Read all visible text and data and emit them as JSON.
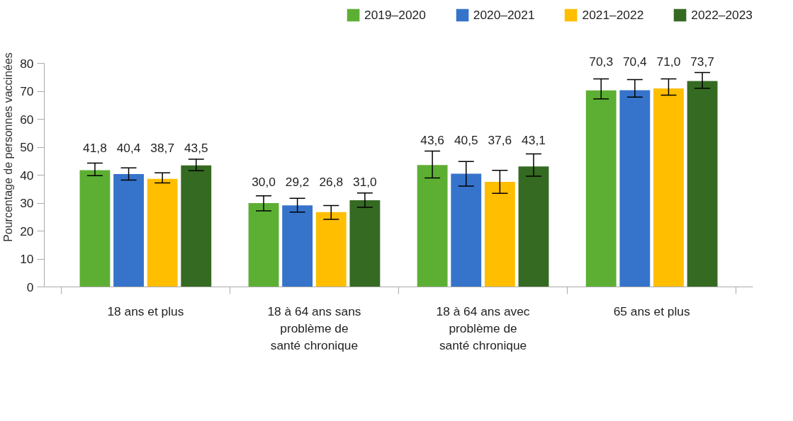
{
  "chart_data": {
    "type": "bar",
    "ylabel": "Pourcentage de personnes vaccinées",
    "categories": [
      "18 ans et plus",
      "18 à 64 ans sans problème de santé chronique",
      "18 à 64 ans avec problème de santé chronique",
      "65 ans et plus"
    ],
    "ylim": [
      0,
      80
    ],
    "yticks": [
      0,
      10,
      20,
      30,
      40,
      50,
      60,
      70,
      80
    ],
    "grid": false,
    "legend": "top right",
    "series": [
      {
        "name": "2019–2020",
        "color": "#5daf34",
        "values": [
          41.8,
          30.0,
          43.6,
          70.3
        ],
        "value_labels": [
          "41,8",
          "30,0",
          "43,6",
          "70,3"
        ],
        "errors": [
          [
            39.8,
            44.3
          ],
          [
            27.2,
            32.6
          ],
          [
            39.0,
            48.6
          ],
          [
            67.3,
            74.4
          ]
        ]
      },
      {
        "name": "2020–2021",
        "color": "#3674cb",
        "values": [
          40.4,
          29.2,
          40.5,
          70.4
        ],
        "value_labels": [
          "40,4",
          "29,2",
          "40,5",
          "70,4"
        ],
        "errors": [
          [
            38.2,
            42.6
          ],
          [
            26.8,
            31.7
          ],
          [
            36.1,
            44.9
          ],
          [
            67.9,
            74.2
          ]
        ]
      },
      {
        "name": "2021–2022",
        "color": "#ffbe00",
        "values": [
          38.7,
          26.8,
          37.6,
          71.0
        ],
        "value_labels": [
          "38,7",
          "26,8",
          "37,6",
          "71,0"
        ],
        "errors": [
          [
            37.2,
            40.8
          ],
          [
            24.2,
            29.1
          ],
          [
            33.5,
            41.7
          ],
          [
            68.6,
            74.4
          ]
        ]
      },
      {
        "name": "2022–2023",
        "color": "#356a22",
        "values": [
          43.5,
          31.0,
          43.1,
          73.7
        ],
        "value_labels": [
          "43,5",
          "31,0",
          "43,1",
          "73,7"
        ],
        "errors": [
          [
            41.6,
            45.7
          ],
          [
            28.5,
            33.6
          ],
          [
            39.6,
            47.6
          ],
          [
            71.1,
            76.7
          ]
        ]
      }
    ]
  }
}
